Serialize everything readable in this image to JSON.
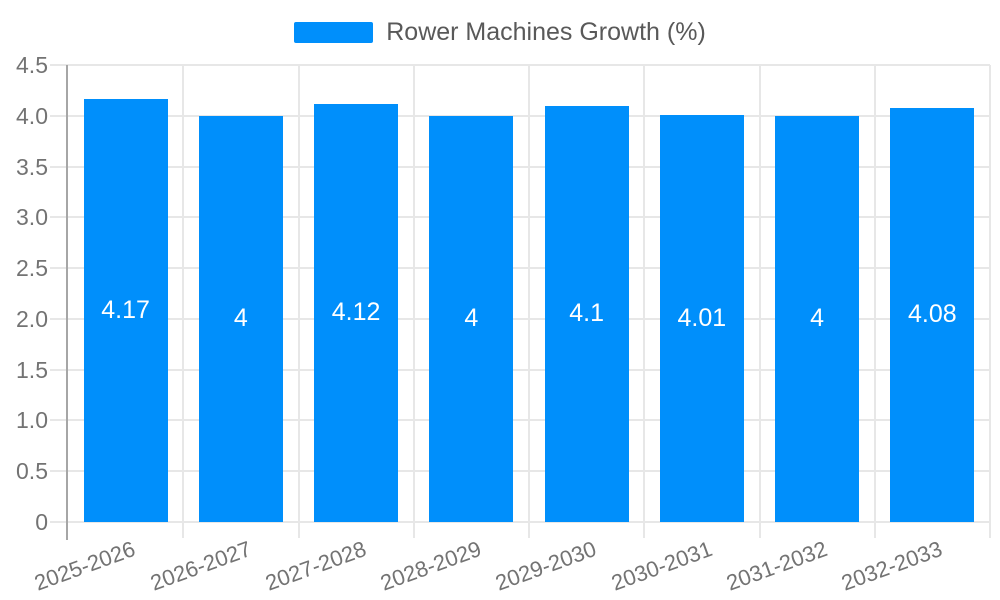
{
  "chart_data": {
    "type": "bar",
    "title": "",
    "legend": {
      "label": "Rower Machines Growth (%)",
      "position": "top"
    },
    "categories": [
      "2025-2026",
      "2026-2027",
      "2027-2028",
      "2028-2029",
      "2029-2030",
      "2030-2031",
      "2031-2032",
      "2032-2033"
    ],
    "series": [
      {
        "name": "Rower Machines Growth (%)",
        "values": [
          4.17,
          4,
          4.12,
          4,
          4.1,
          4.01,
          4,
          4.08
        ]
      }
    ],
    "value_labels": [
      "4.17",
      "4",
      "4.12",
      "4",
      "4.1",
      "4.01",
      "4",
      "4.08"
    ],
    "xlabel": "",
    "ylabel": "",
    "ylim": [
      0,
      4.5
    ],
    "ytick_values": [
      0,
      0.5,
      1,
      1.5,
      2,
      2.5,
      3,
      3.5,
      4,
      4.5
    ],
    "ytick_labels": [
      "0",
      "0.5",
      "1.0",
      "1.5",
      "2.0",
      "2.5",
      "3.0",
      "3.5",
      "4.0",
      "4.5"
    ],
    "grid": true,
    "colors": {
      "bar": "#008FFB",
      "grid": "#e7e7e7",
      "axis_line": "#a6a6a6",
      "tick_label": "#737373",
      "legend_text": "#595959",
      "data_label": "#ffffff",
      "background": "#ffffff"
    }
  }
}
